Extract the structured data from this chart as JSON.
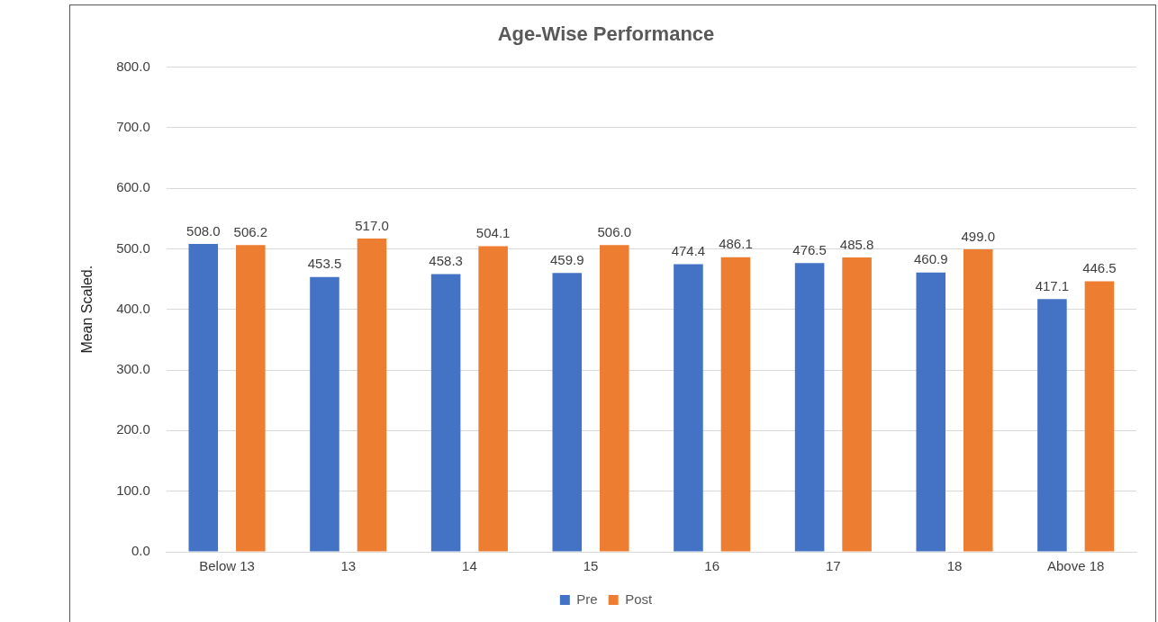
{
  "chart_data": {
    "type": "bar",
    "title": "Age-Wise Performance",
    "ylabel": "Mean Scaled.",
    "categories": [
      "Below 13",
      "13",
      "14",
      "15",
      "16",
      "17",
      "18",
      "Above 18"
    ],
    "series": [
      {
        "name": "Pre",
        "color": "#4472c4",
        "values": [
          508.0,
          453.5,
          458.3,
          459.9,
          474.4,
          476.5,
          460.9,
          417.1
        ],
        "value_labels": [
          "508.0",
          "453.5",
          "458.3",
          "459.9",
          "474.4",
          "476.5",
          "460.9",
          "417.1"
        ]
      },
      {
        "name": "Post",
        "color": "#ed7d31",
        "values": [
          506.2,
          517.0,
          504.1,
          506.0,
          486.1,
          485.8,
          499.0,
          446.5
        ],
        "value_labels": [
          "506.2",
          "517.0",
          "504.1",
          "506.0",
          "486.1",
          "485.8",
          "499.0",
          "446.5"
        ]
      }
    ],
    "ylim": [
      0,
      800
    ],
    "yticks": [
      {
        "value": 0,
        "label": "0.0"
      },
      {
        "value": 100,
        "label": "100.0"
      },
      {
        "value": 200,
        "label": "200.0"
      },
      {
        "value": 300,
        "label": "300.0"
      },
      {
        "value": 400,
        "label": "400.0"
      },
      {
        "value": 500,
        "label": "500.0"
      },
      {
        "value": 600,
        "label": "600.0"
      },
      {
        "value": 700,
        "label": "700.0"
      },
      {
        "value": 800,
        "label": "800.0"
      }
    ],
    "grid": "y",
    "legend": "bottom"
  }
}
